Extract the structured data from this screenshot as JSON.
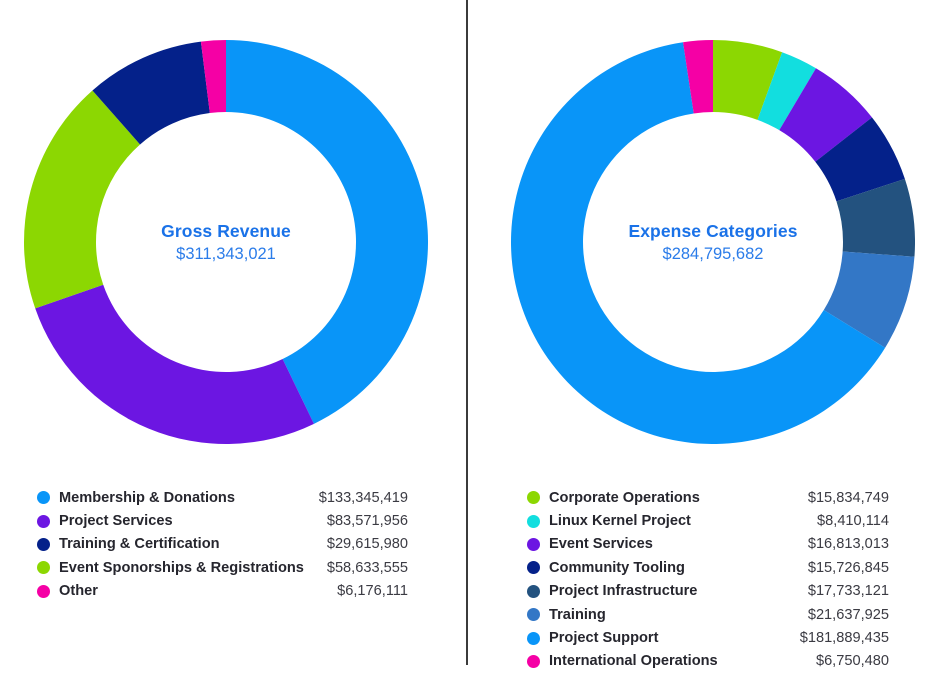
{
  "style": {
    "title_color": "#1a72e8",
    "total_color": "#2b7ce9",
    "divider_color": "#3b3b3b",
    "legend_label_color": "#26262e",
    "legend_value_color": "#3b3b43"
  },
  "chart_data": [
    {
      "type": "pie",
      "subtype": "donut",
      "title": "Gross Revenue",
      "center_total_label": "$311,343,021",
      "total": 311343021,
      "start_angle_deg": 0,
      "direction": "clockwise",
      "inner_radius_ratio": 0.643,
      "slices": [
        {
          "label": "Membership & Donations",
          "value": 133345419,
          "display": "$133,345,419",
          "color": "#0995f8"
        },
        {
          "label": "Project Services",
          "value": 83571956,
          "display": "$83,571,956",
          "color": "#6c16e2"
        },
        {
          "label": "Event Sponorships & Registrations",
          "value": 58633555,
          "display": "$58,633,555",
          "color": "#8cd702"
        },
        {
          "label": "Training & Certification",
          "value": 29615980,
          "display": "$29,615,980",
          "color": "#04218a"
        },
        {
          "label": "Other",
          "value": 6176111,
          "display": "$6,176,111",
          "color": "#f500a5"
        }
      ],
      "legend_order": [
        0,
        1,
        3,
        2,
        4
      ]
    },
    {
      "type": "pie",
      "subtype": "donut",
      "title": "Expense Categories",
      "center_total_label": "$284,795,682",
      "total": 284795682,
      "start_angle_deg": 0,
      "direction": "clockwise",
      "inner_radius_ratio": 0.643,
      "slices": [
        {
          "label": "Corporate Operations",
          "value": 15834749,
          "display": "$15,834,749",
          "color": "#8cd702"
        },
        {
          "label": "Linux Kernel Project",
          "value": 8410114,
          "display": "$8,410,114",
          "color": "#12dedf"
        },
        {
          "label": "Event Services",
          "value": 16813013,
          "display": "$16,813,013",
          "color": "#6c16e2"
        },
        {
          "label": "Community Tooling",
          "value": 15726845,
          "display": "$15,726,845",
          "color": "#04218a"
        },
        {
          "label": "Project Infrastructure",
          "value": 17733121,
          "display": "$17,733,121",
          "color": "#23527f"
        },
        {
          "label": "Training",
          "value": 21637925,
          "display": "$21,637,925",
          "color": "#3377c6"
        },
        {
          "label": "Project Support",
          "value": 181889435,
          "display": "$181,889,435",
          "color": "#0995f8"
        },
        {
          "label": "International Operations",
          "value": 6750480,
          "display": "$6,750,480",
          "color": "#f500a5"
        }
      ],
      "legend_order": [
        0,
        1,
        2,
        3,
        4,
        5,
        6,
        7
      ]
    }
  ]
}
